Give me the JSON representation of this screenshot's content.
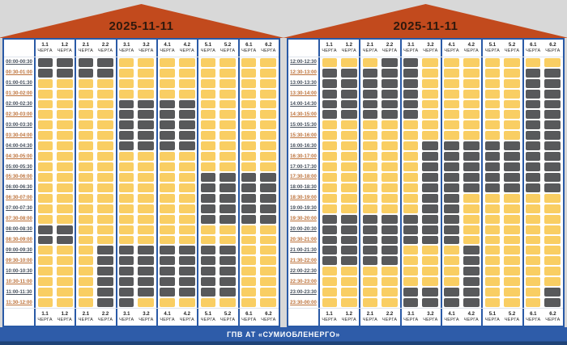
{
  "footer": {
    "title": "ГПВ АТ «СУМИОБЛЕНЕРГО»"
  },
  "chart_data": {
    "type": "heatmap",
    "description_axes": {
      "x": "черга (queue 1.1–6.2)",
      "y": "30-хвилинні інтервали доби"
    },
    "columns": [
      "1.1",
      "1.2",
      "2.1",
      "2.2",
      "3.1",
      "3.2",
      "4.1",
      "4.2",
      "5.1",
      "5.2",
      "6.1",
      "6.2"
    ],
    "column_sublabel": "ЧЕРГА",
    "states": {
      "on_color": "#F9CE63",
      "off_color": "#58595B"
    },
    "accent_colors": {
      "roof_orange": "#C24A1D",
      "frame_blue": "#2A5AA6",
      "time_label_hour": "#46505D",
      "time_label_half_hour": "#BC7038",
      "footer_bar_blue": "#2E5CA9"
    },
    "tables": [
      {
        "date": "2025-11-11",
        "rows": [
          {
            "time": "00:00-00:30",
            "off": [
              "1.1",
              "1.2",
              "2.1",
              "2.2"
            ]
          },
          {
            "time": "00:30-01:00",
            "off": [
              "1.1",
              "1.2",
              "2.1",
              "2.2"
            ]
          },
          {
            "time": "01:00-01:30",
            "off": []
          },
          {
            "time": "01:30-02:00",
            "off": []
          },
          {
            "time": "02:00-02:30",
            "off": [
              "3.1",
              "3.2",
              "4.1",
              "4.2"
            ]
          },
          {
            "time": "02:30-03:00",
            "off": [
              "3.1",
              "3.2",
              "4.1",
              "4.2"
            ]
          },
          {
            "time": "03:00-03:30",
            "off": [
              "3.1",
              "3.2",
              "4.1",
              "4.2"
            ]
          },
          {
            "time": "03:30-04:00",
            "off": [
              "3.1",
              "3.2",
              "4.1",
              "4.2"
            ]
          },
          {
            "time": "04:00-04:30",
            "off": [
              "3.1",
              "3.2",
              "4.1",
              "4.2"
            ]
          },
          {
            "time": "04:30-05:00",
            "off": []
          },
          {
            "time": "05:00-05:30",
            "off": []
          },
          {
            "time": "05:30-06:00",
            "off": [
              "5.1",
              "5.2",
              "6.1",
              "6.2"
            ]
          },
          {
            "time": "06:00-06:30",
            "off": [
              "5.1",
              "5.2",
              "6.1",
              "6.2"
            ]
          },
          {
            "time": "06:30-07:00",
            "off": [
              "5.1",
              "5.2",
              "6.1",
              "6.2"
            ]
          },
          {
            "time": "07:00-07:30",
            "off": [
              "5.1",
              "5.2",
              "6.1",
              "6.2"
            ]
          },
          {
            "time": "07:30-08:00",
            "off": [
              "5.1",
              "5.2",
              "6.1",
              "6.2"
            ]
          },
          {
            "time": "08:00-08:30",
            "off": [
              "1.1",
              "1.2"
            ]
          },
          {
            "time": "08:30-09:00",
            "off": [
              "1.1",
              "1.2"
            ]
          },
          {
            "time": "09:00-09:30",
            "off": [
              "2.2",
              "3.1",
              "3.2",
              "4.1",
              "4.2",
              "5.1",
              "5.2"
            ]
          },
          {
            "time": "09:30-10:00",
            "off": [
              "2.2",
              "3.1",
              "3.2",
              "4.1",
              "4.2",
              "5.1",
              "5.2"
            ]
          },
          {
            "time": "10:00-10:30",
            "off": [
              "2.2",
              "3.1",
              "3.2",
              "4.1",
              "4.2",
              "5.1",
              "5.2"
            ]
          },
          {
            "time": "10:30-11:00",
            "off": [
              "2.2",
              "3.1",
              "3.2",
              "4.1",
              "4.2",
              "5.1",
              "5.2"
            ]
          },
          {
            "time": "11:00-11:30",
            "off": [
              "2.2",
              "3.1",
              "3.2",
              "4.1",
              "4.2",
              "5.1",
              "5.2"
            ]
          },
          {
            "time": "11:30-12:00",
            "off": [
              "2.2",
              "3.1"
            ]
          }
        ]
      },
      {
        "date": "2025-11-11",
        "rows": [
          {
            "time": "12:00-12:30",
            "off": [
              "2.2",
              "3.1"
            ]
          },
          {
            "time": "12:30-13:00",
            "off": [
              "1.1",
              "1.2",
              "2.1",
              "2.2",
              "3.1",
              "6.1",
              "6.2"
            ]
          },
          {
            "time": "13:00-13:30",
            "off": [
              "1.1",
              "1.2",
              "2.1",
              "2.2",
              "3.1",
              "6.1",
              "6.2"
            ]
          },
          {
            "time": "13:30-14:00",
            "off": [
              "1.1",
              "1.2",
              "2.1",
              "2.2",
              "3.1",
              "6.1",
              "6.2"
            ]
          },
          {
            "time": "14:00-14:30",
            "off": [
              "1.1",
              "1.2",
              "2.1",
              "2.2",
              "3.1",
              "6.1",
              "6.2"
            ]
          },
          {
            "time": "14:30-15:00",
            "off": [
              "1.1",
              "1.2",
              "2.1",
              "2.2",
              "3.1",
              "6.1",
              "6.2"
            ]
          },
          {
            "time": "15:00-15:30",
            "off": [
              "6.1",
              "6.2"
            ]
          },
          {
            "time": "15:30-16:00",
            "off": [
              "6.1",
              "6.2"
            ]
          },
          {
            "time": "16:00-16:30",
            "off": [
              "3.2",
              "4.1",
              "4.2",
              "5.1",
              "5.2",
              "6.1",
              "6.2"
            ]
          },
          {
            "time": "16:30-17:00",
            "off": [
              "3.2",
              "4.1",
              "4.2",
              "5.1",
              "5.2",
              "6.1",
              "6.2"
            ]
          },
          {
            "time": "17:00-17:30",
            "off": [
              "3.2",
              "4.1",
              "4.2",
              "5.1",
              "5.2",
              "6.1",
              "6.2"
            ]
          },
          {
            "time": "17:30-18:00",
            "off": [
              "3.2",
              "4.1",
              "4.2",
              "5.1",
              "5.2",
              "6.1",
              "6.2"
            ]
          },
          {
            "time": "18:00-18:30",
            "off": [
              "3.2",
              "4.1",
              "4.2",
              "5.1",
              "5.2",
              "6.1",
              "6.2"
            ]
          },
          {
            "time": "18:30-19:00",
            "off": [
              "3.2",
              "4.1"
            ]
          },
          {
            "time": "19:00-19:30",
            "off": [
              "3.2",
              "4.1"
            ]
          },
          {
            "time": "19:30-20:00",
            "off": [
              "1.1",
              "1.2",
              "2.1",
              "2.2",
              "3.1",
              "3.2",
              "4.1"
            ]
          },
          {
            "time": "20:00-20:30",
            "off": [
              "1.1",
              "1.2",
              "2.1",
              "2.2",
              "3.1",
              "3.2",
              "4.1"
            ]
          },
          {
            "time": "20:30-21:00",
            "off": [
              "1.1",
              "1.2",
              "2.1",
              "2.2",
              "3.1",
              "3.2",
              "4.1"
            ]
          },
          {
            "time": "21:00-21:30",
            "off": [
              "1.1",
              "1.2",
              "2.1",
              "2.2",
              "4.2"
            ]
          },
          {
            "time": "21:30-22:00",
            "off": [
              "1.1",
              "1.2",
              "2.1",
              "2.2",
              "4.2"
            ]
          },
          {
            "time": "22:00-22:30",
            "off": [
              "4.2"
            ]
          },
          {
            "time": "22:30-23:00",
            "off": [
              "4.2"
            ]
          },
          {
            "time": "23:00-23:30",
            "off": [
              "3.1",
              "3.2",
              "4.1",
              "4.2",
              "6.2"
            ]
          },
          {
            "time": "23:30-00:00",
            "off": [
              "3.1",
              "3.2",
              "4.1",
              "4.2",
              "6.2"
            ]
          }
        ]
      }
    ]
  }
}
